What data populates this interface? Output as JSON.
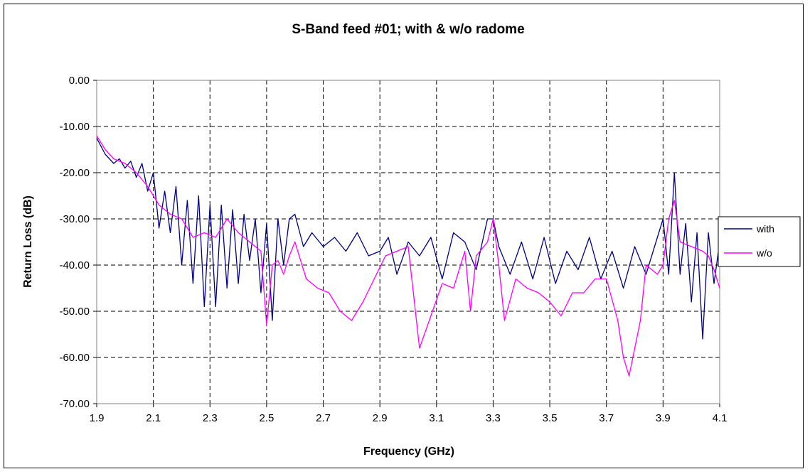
{
  "chart_data": {
    "type": "line",
    "title": "S-Band feed #01; with & w/o radome",
    "xlabel": "Frequency (GHz)",
    "ylabel": "Return Loss (dB)",
    "xlim": [
      1.9,
      4.1
    ],
    "ylim": [
      -70,
      0
    ],
    "x_ticks": [
      "1.9",
      "2.1",
      "2.3",
      "2.5",
      "2.7",
      "2.9",
      "3.1",
      "3.3",
      "3.5",
      "3.7",
      "3.9",
      "4.1"
    ],
    "y_ticks": [
      "0.00",
      "-10.00",
      "-20.00",
      "-30.00",
      "-40.00",
      "-50.00",
      "-60.00",
      "-70.00"
    ],
    "grid": true,
    "legend_position": "right",
    "series": [
      {
        "name": "with",
        "color": "#000080",
        "x": [
          1.9,
          1.93,
          1.96,
          1.98,
          2.0,
          2.02,
          2.04,
          2.06,
          2.08,
          2.1,
          2.12,
          2.14,
          2.16,
          2.18,
          2.2,
          2.22,
          2.24,
          2.26,
          2.28,
          2.3,
          2.32,
          2.34,
          2.36,
          2.38,
          2.4,
          2.42,
          2.44,
          2.46,
          2.48,
          2.5,
          2.52,
          2.54,
          2.56,
          2.58,
          2.6,
          2.63,
          2.66,
          2.7,
          2.74,
          2.78,
          2.82,
          2.86,
          2.9,
          2.93,
          2.96,
          3.0,
          3.04,
          3.08,
          3.12,
          3.16,
          3.2,
          3.24,
          3.28,
          3.3,
          3.32,
          3.36,
          3.4,
          3.44,
          3.48,
          3.52,
          3.56,
          3.6,
          3.64,
          3.68,
          3.72,
          3.76,
          3.8,
          3.84,
          3.87,
          3.9,
          3.92,
          3.94,
          3.96,
          3.98,
          4.0,
          4.02,
          4.04,
          4.06,
          4.08,
          4.1
        ],
        "y": [
          -12.5,
          -16,
          -18,
          -17,
          -19,
          -17.5,
          -21,
          -18,
          -24,
          -20,
          -32,
          -24,
          -33,
          -23,
          -40,
          -26,
          -44,
          -25,
          -49,
          -27,
          -49,
          -27,
          -45,
          -28,
          -44,
          -29,
          -39,
          -30,
          -46,
          -31,
          -52,
          -30,
          -40,
          -30,
          -29,
          -36,
          -33,
          -36,
          -34,
          -37,
          -33,
          -38,
          -37,
          -34,
          -42,
          -35,
          -38,
          -34,
          -43,
          -33,
          -35,
          -41,
          -30,
          -30,
          -36,
          -42,
          -35,
          -43,
          -34,
          -44,
          -37,
          -41,
          -34,
          -43,
          -37,
          -45,
          -36,
          -42,
          -36,
          -30,
          -42,
          -20,
          -42,
          -31,
          -48,
          -33,
          -56,
          -33,
          -44,
          -35
        ],
        "x_dense": [],
        "y_dense": []
      },
      {
        "name": "w/o",
        "color": "#ff00ff",
        "x": [
          1.9,
          1.93,
          1.96,
          2.0,
          2.04,
          2.08,
          2.12,
          2.16,
          2.2,
          2.24,
          2.28,
          2.32,
          2.36,
          2.4,
          2.44,
          2.48,
          2.5,
          2.52,
          2.54,
          2.56,
          2.58,
          2.6,
          2.64,
          2.68,
          2.72,
          2.76,
          2.8,
          2.84,
          2.88,
          2.92,
          2.96,
          3.0,
          3.04,
          3.08,
          3.12,
          3.16,
          3.2,
          3.22,
          3.24,
          3.28,
          3.3,
          3.32,
          3.34,
          3.38,
          3.42,
          3.46,
          3.5,
          3.54,
          3.58,
          3.62,
          3.66,
          3.7,
          3.74,
          3.76,
          3.78,
          3.82,
          3.84,
          3.88,
          3.9,
          3.92,
          3.94,
          3.96,
          4.0,
          4.04,
          4.06,
          4.08,
          4.1
        ],
        "y": [
          -12,
          -15,
          -17,
          -18,
          -20,
          -23,
          -27,
          -29,
          -30,
          -34,
          -33,
          -34,
          -30,
          -33,
          -35,
          -37,
          -53,
          -40,
          -39,
          -42,
          -38,
          -35,
          -43,
          -45,
          -46,
          -50,
          -52,
          -48,
          -43,
          -38,
          -37,
          -36,
          -58,
          -51,
          -44,
          -45,
          -37,
          -50,
          -38,
          -35,
          -30,
          -40,
          -52,
          -43,
          -45,
          -46,
          -48,
          -51,
          -46,
          -46,
          -43,
          -43,
          -52,
          -60,
          -64,
          -52,
          -40,
          -42,
          -40,
          -30,
          -26,
          -35,
          -36,
          -37,
          -38,
          -41,
          -45
        ]
      }
    ]
  }
}
